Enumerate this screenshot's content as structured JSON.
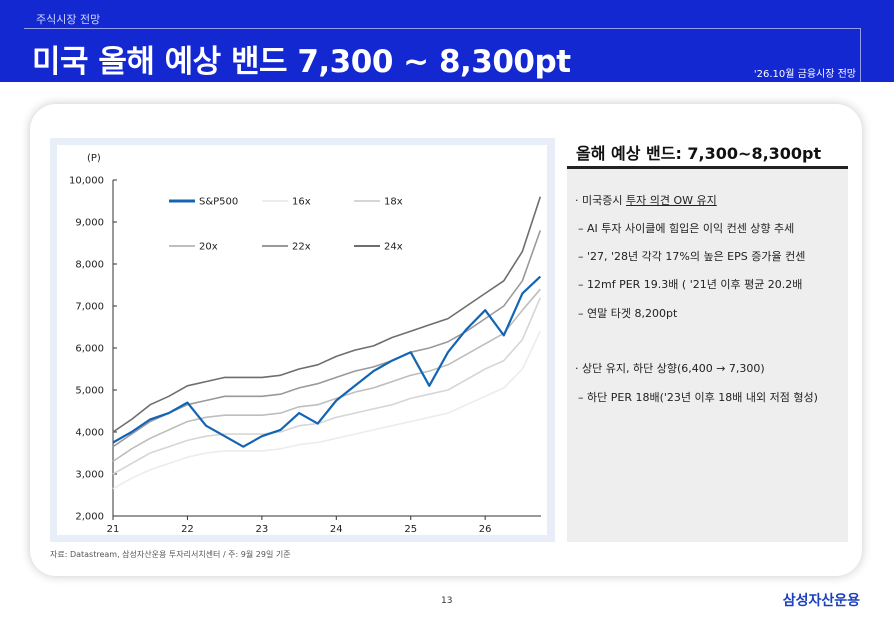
{
  "header": {
    "section_label": "주식시장 전망",
    "title": "미국 올해 예상 밴드 7,300 ~ 8,300pt",
    "report_tag": "'26.10월 금융시장 전망"
  },
  "source_note": "자료: Datastream, 삼성자산운용 투자리서치센터 / 주: 9월 29일 기준",
  "info": {
    "title": "올해 예상 밴드: 7,300~8,300pt",
    "bullets": [
      {
        "prefix": "· 미국증시 ",
        "emph": "투자 의견 OW 유지"
      },
      {
        "text": "– AI 투자 사이클에 힘입은 이익 컨센 상향 추세"
      },
      {
        "text": "–  '27, '28년 각각 17%의 높은 EPS 증가율 컨센"
      },
      {
        "text": "– 12mf PER 19.3배 ( '21년 이후 평균 20.2배"
      },
      {
        "text": "– 연말 타겟 8,200pt"
      },
      {
        "text": "·  상단 유지, 하단 상향(6,400 → 7,300)"
      },
      {
        "text": " – 하단 PER 18배('23년 이후 18배 내외 저점 형성)"
      }
    ]
  },
  "footer": {
    "page_number": "13",
    "logo": "삼성자산운용"
  },
  "colors": {
    "header_bg": "#1428d2",
    "sp500": "#1464b4",
    "band_16x": "#ececec",
    "band_18x": "#d6d6d6",
    "band_20x": "#bebebe",
    "band_22x": "#9a9a9a",
    "band_24x": "#6e6e6e",
    "logo": "#1a3fbf"
  },
  "chart_data": {
    "type": "line",
    "unit_label": "(P)",
    "y_ticks": [
      "10,000",
      "9,000",
      "8,000",
      "7,000",
      "6,000",
      "5,000",
      "4,000",
      "3,000",
      "2,000"
    ],
    "ylim": [
      2000,
      10000
    ],
    "x_ticks": [
      "21",
      "22",
      "23",
      "24",
      "25",
      "26"
    ],
    "xlim": [
      2021.0,
      2026.75
    ],
    "grid": false,
    "legend": "top-left, inside plot, two rows",
    "x": [
      2021.0,
      2021.25,
      2021.5,
      2021.75,
      2022.0,
      2022.25,
      2022.5,
      2022.75,
      2023.0,
      2023.25,
      2023.5,
      2023.75,
      2024.0,
      2024.25,
      2024.5,
      2024.75,
      2025.0,
      2025.25,
      2025.5,
      2025.75,
      2026.0,
      2026.25,
      2026.5,
      2026.74
    ],
    "series": [
      {
        "name": "S&P500",
        "values": [
          3750,
          4000,
          4300,
          4450,
          4700,
          4150,
          3900,
          3650,
          3900,
          4050,
          4450,
          4200,
          4750,
          5100,
          5450,
          5700,
          5900,
          5100,
          5900,
          6450,
          6900,
          6300,
          7300,
          7700
        ]
      },
      {
        "name": "16x",
        "values": [
          2650,
          2900,
          3100,
          3250,
          3400,
          3500,
          3550,
          3550,
          3550,
          3600,
          3700,
          3750,
          3850,
          3950,
          4050,
          4150,
          4250,
          4350,
          4450,
          4650,
          4850,
          5050,
          5500,
          6400
        ]
      },
      {
        "name": "18x",
        "values": [
          3000,
          3250,
          3500,
          3650,
          3800,
          3900,
          3950,
          3950,
          3950,
          4000,
          4150,
          4200,
          4350,
          4450,
          4550,
          4650,
          4800,
          4900,
          5000,
          5250,
          5500,
          5700,
          6200,
          7200
        ]
      },
      {
        "name": "20x",
        "values": [
          3300,
          3600,
          3850,
          4050,
          4250,
          4350,
          4400,
          4400,
          4400,
          4450,
          4600,
          4650,
          4800,
          4950,
          5050,
          5200,
          5350,
          5450,
          5600,
          5850,
          6100,
          6350,
          6900,
          7400
        ]
      },
      {
        "name": "22x",
        "values": [
          3650,
          3950,
          4250,
          4450,
          4650,
          4750,
          4850,
          4850,
          4850,
          4900,
          5050,
          5150,
          5300,
          5450,
          5550,
          5700,
          5900,
          6000,
          6150,
          6400,
          6700,
          7000,
          7600,
          8800
        ]
      },
      {
        "name": "24x",
        "values": [
          4000,
          4300,
          4650,
          4850,
          5100,
          5200,
          5300,
          5300,
          5300,
          5350,
          5500,
          5600,
          5800,
          5950,
          6050,
          6250,
          6400,
          6550,
          6700,
          7000,
          7300,
          7600,
          8300,
          9600
        ]
      }
    ]
  }
}
